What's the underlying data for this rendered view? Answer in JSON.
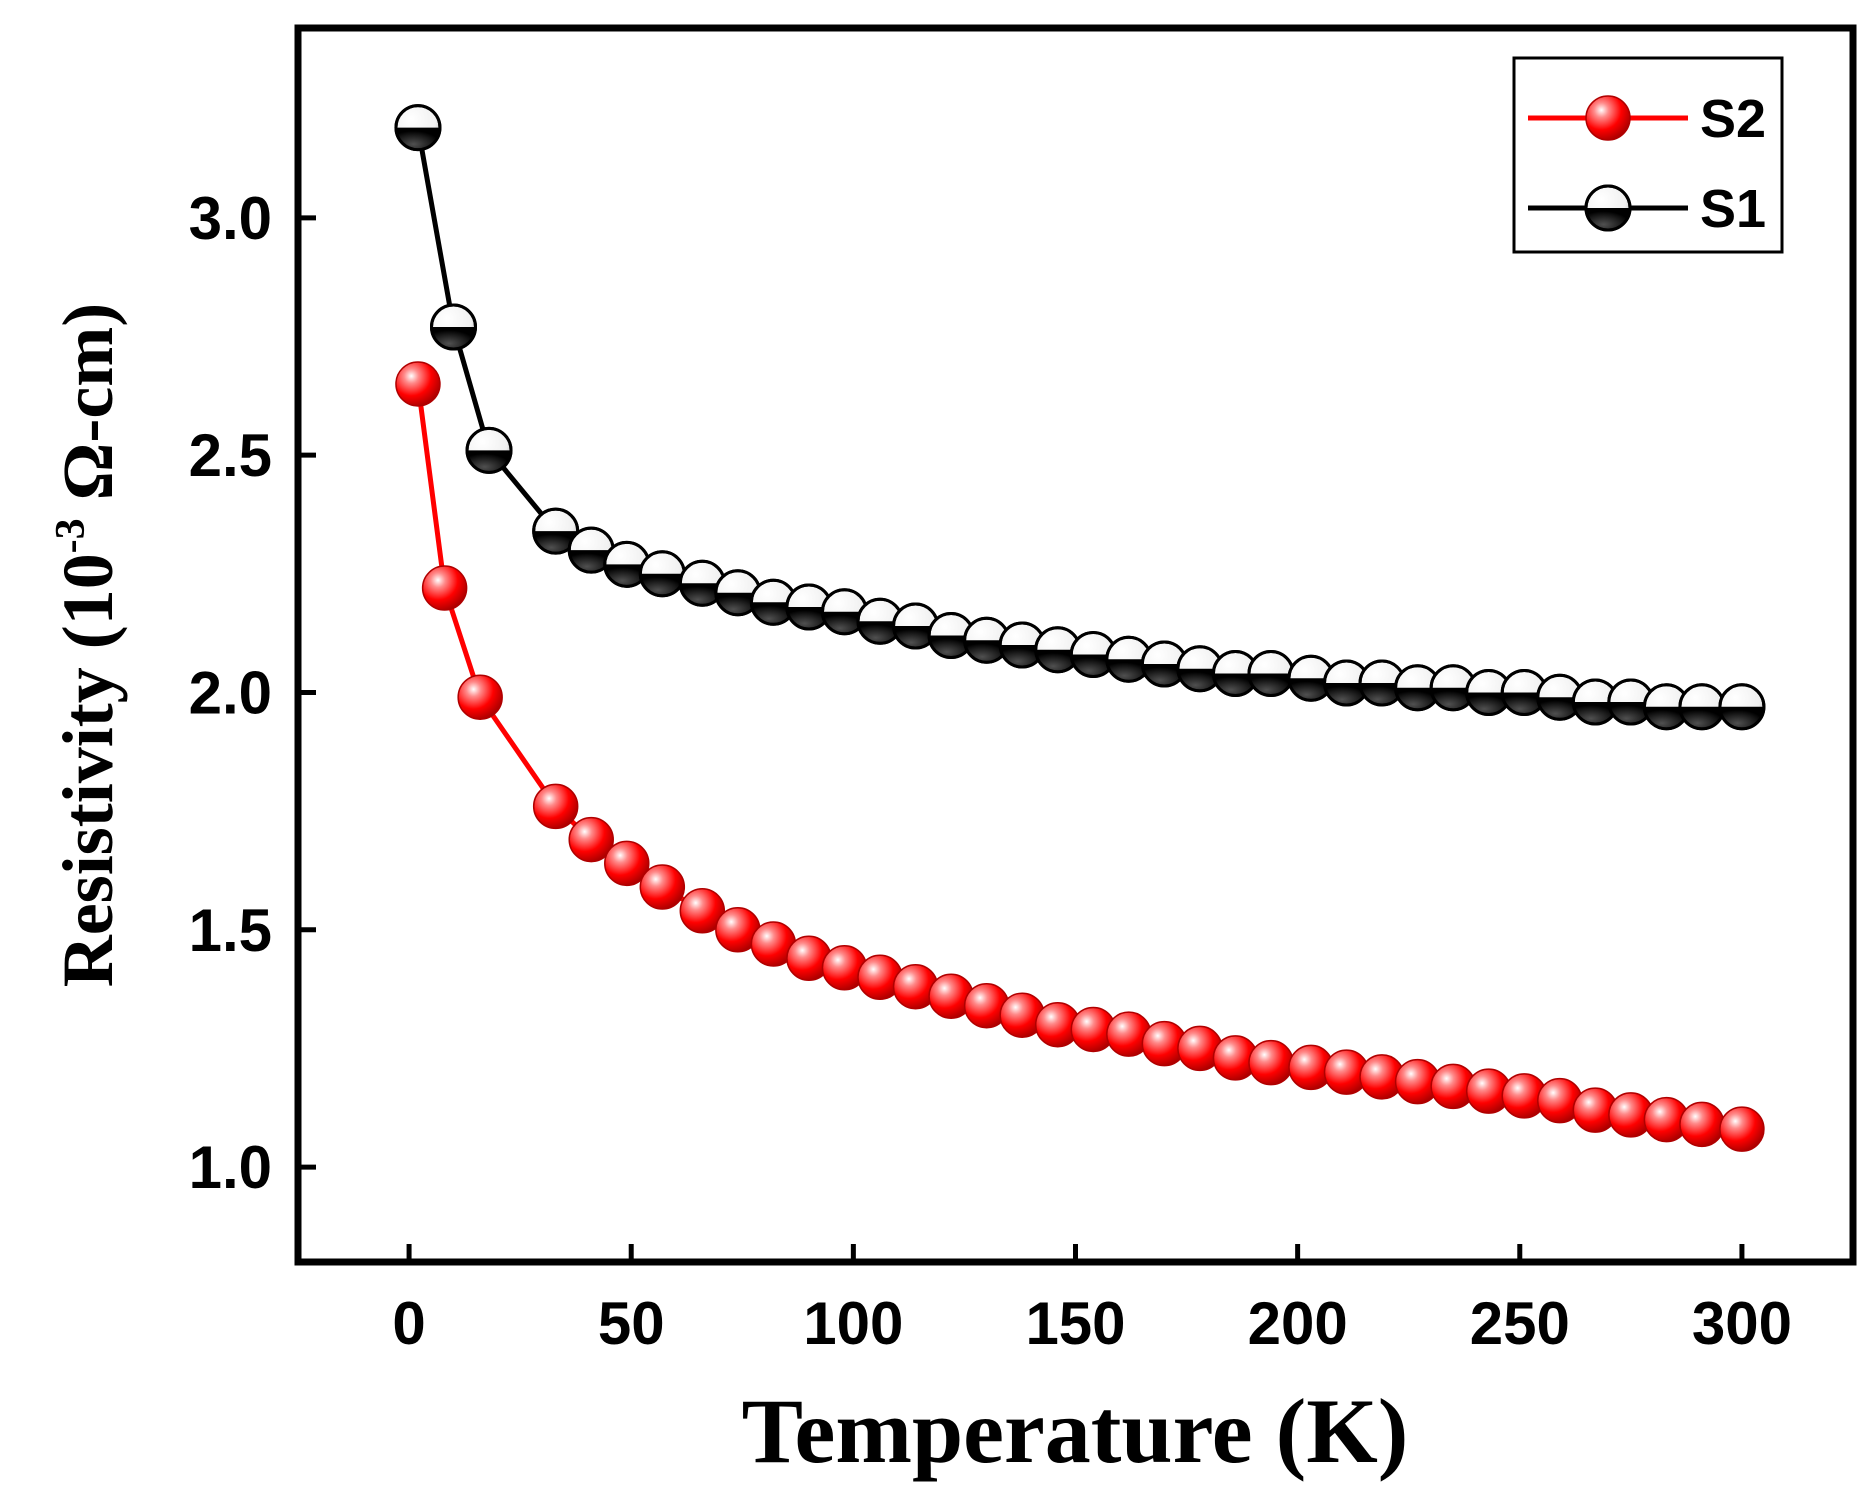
{
  "chart_data": {
    "type": "line",
    "title": "",
    "xlabel": "Temperature (K)",
    "ylabel": {
      "main": "Resistivity (10",
      "exponent": "-3",
      "unit": " Ω-cm)"
    },
    "xlim": [
      -25,
      325
    ],
    "ylim": [
      0.8,
      3.4
    ],
    "xticks": [
      "0",
      "50",
      "100",
      "150",
      "200",
      "250",
      "300"
    ],
    "yticks": [
      "1.0",
      "1.5",
      "2.0",
      "2.5",
      "3.0"
    ],
    "legend_position": "top-right",
    "colors": {
      "S2": "#ff0000",
      "S1": "#000000"
    },
    "series": [
      {
        "name": "S2",
        "style": "red-sphere",
        "x": [
          2,
          8,
          16,
          33,
          41,
          49,
          57,
          66,
          74,
          82,
          90,
          98,
          106,
          114,
          122,
          130,
          138,
          146,
          154,
          162,
          170,
          178,
          186,
          194,
          203,
          211,
          219,
          227,
          235,
          243,
          251,
          259,
          267,
          275,
          283,
          291,
          300
        ],
        "y": [
          2.65,
          2.22,
          1.99,
          1.76,
          1.69,
          1.64,
          1.59,
          1.54,
          1.5,
          1.47,
          1.44,
          1.42,
          1.4,
          1.38,
          1.36,
          1.34,
          1.32,
          1.3,
          1.29,
          1.28,
          1.26,
          1.25,
          1.23,
          1.22,
          1.21,
          1.2,
          1.19,
          1.18,
          1.17,
          1.16,
          1.15,
          1.14,
          1.12,
          1.11,
          1.1,
          1.09,
          1.08
        ]
      },
      {
        "name": "S1",
        "style": "half-filled",
        "x": [
          2,
          10,
          18,
          33,
          41,
          49,
          57,
          66,
          74,
          82,
          90,
          98,
          106,
          114,
          122,
          130,
          138,
          146,
          154,
          162,
          170,
          178,
          186,
          194,
          203,
          211,
          219,
          227,
          235,
          243,
          251,
          259,
          267,
          275,
          283,
          291,
          300
        ],
        "y": [
          3.19,
          2.77,
          2.51,
          2.34,
          2.3,
          2.27,
          2.25,
          2.23,
          2.21,
          2.19,
          2.18,
          2.17,
          2.15,
          2.14,
          2.12,
          2.11,
          2.1,
          2.09,
          2.08,
          2.07,
          2.06,
          2.05,
          2.04,
          2.04,
          2.03,
          2.02,
          2.02,
          2.01,
          2.01,
          2.0,
          2.0,
          1.99,
          1.98,
          1.98,
          1.97,
          1.97,
          1.97
        ]
      }
    ]
  }
}
